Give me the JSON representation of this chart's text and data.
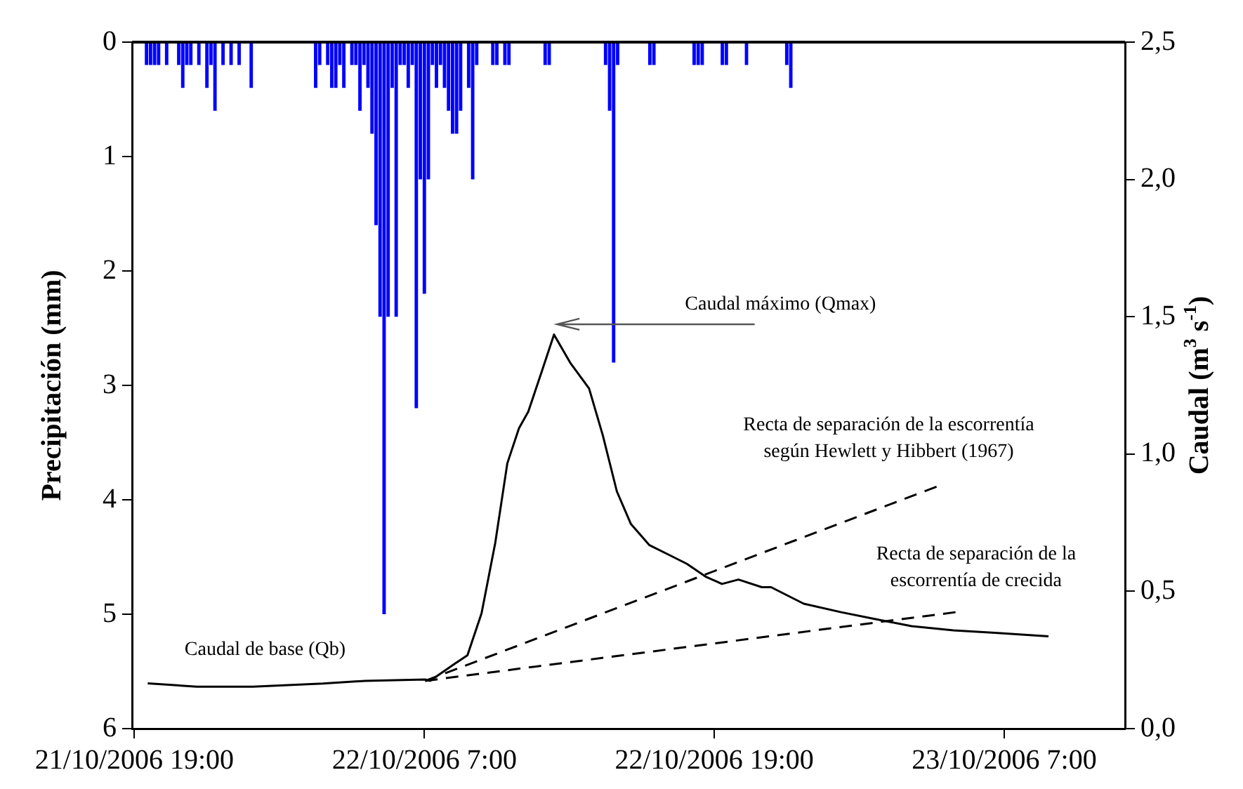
{
  "chart_data": {
    "type": "bar",
    "ylabel": "Precipitación (mm)",
    "y2label": "Caudal (m$^{3}$ s$^{-1}$)",
    "xlim": [
      "2006-10-21T18:54",
      "2006-10-23T12:00"
    ],
    "xticks": [
      {
        "value": "2006-10-21T19:00",
        "label": "21/10/2006 19:00"
      },
      {
        "value": "2006-10-22T07:00",
        "label": "22/10/2006 7:00"
      },
      {
        "value": "2006-10-22T19:00",
        "label": "22/10/2006 19:00"
      },
      {
        "value": "2006-10-23T07:00",
        "label": "23/10/2006 7:00"
      }
    ],
    "ylim": [
      6,
      0
    ],
    "yticks": [
      0,
      1,
      2,
      3,
      4,
      5,
      6
    ],
    "y2lim": [
      0,
      2.5
    ],
    "y2ticks": [
      {
        "value": 0,
        "label": "0,0"
      },
      {
        "value": 0.5,
        "label": "0,5"
      },
      {
        "value": 1,
        "label": "1,0"
      },
      {
        "value": 1.5,
        "label": "1,5"
      },
      {
        "value": 2,
        "label": "2,0"
      },
      {
        "value": 2.5,
        "label": "2,5"
      }
    ],
    "series": [
      {
        "color": "#0000ff",
        "x": [
          "2006-10-21T19:30",
          "2006-10-21T19:40",
          "2006-10-21T19:50",
          "2006-10-21T20:00",
          "2006-10-21T20:20",
          "2006-10-21T20:50",
          "2006-10-21T21:00",
          "2006-10-21T21:10",
          "2006-10-21T21:20",
          "2006-10-21T21:40",
          "2006-10-21T22:00",
          "2006-10-21T22:10",
          "2006-10-21T22:20",
          "2006-10-21T22:40",
          "2006-10-21T23:00",
          "2006-10-21T23:20",
          "2006-10-21T23:50",
          "2006-10-22T02:30",
          "2006-10-22T02:40",
          "2006-10-22T03:00",
          "2006-10-22T03:10",
          "2006-10-22T03:20",
          "2006-10-22T03:30",
          "2006-10-22T03:40",
          "2006-10-22T04:00",
          "2006-10-22T04:10",
          "2006-10-22T04:20",
          "2006-10-22T04:30",
          "2006-10-22T04:40",
          "2006-10-22T04:50",
          "2006-10-22T05:00",
          "2006-10-22T05:10",
          "2006-10-22T05:20",
          "2006-10-22T05:30",
          "2006-10-22T05:40",
          "2006-10-22T05:50",
          "2006-10-22T06:00",
          "2006-10-22T06:10",
          "2006-10-22T06:20",
          "2006-10-22T06:30",
          "2006-10-22T06:40",
          "2006-10-22T06:50",
          "2006-10-22T07:00",
          "2006-10-22T07:10",
          "2006-10-22T07:20",
          "2006-10-22T07:30",
          "2006-10-22T07:40",
          "2006-10-22T07:50",
          "2006-10-22T08:00",
          "2006-10-22T08:10",
          "2006-10-22T08:20",
          "2006-10-22T08:30",
          "2006-10-22T08:50",
          "2006-10-22T09:00",
          "2006-10-22T09:10",
          "2006-10-22T09:50",
          "2006-10-22T10:00",
          "2006-10-22T10:20",
          "2006-10-22T10:30",
          "2006-10-22T12:00",
          "2006-10-22T12:10",
          "2006-10-22T14:30",
          "2006-10-22T14:40",
          "2006-10-22T14:50",
          "2006-10-22T15:00",
          "2006-10-22T16:20",
          "2006-10-22T16:30",
          "2006-10-22T18:10",
          "2006-10-22T18:20",
          "2006-10-22T18:30",
          "2006-10-22T19:20",
          "2006-10-22T19:30",
          "2006-10-22T20:20",
          "2006-10-22T22:00",
          "2006-10-22T22:10"
        ],
        "values": [
          0.2,
          0.2,
          0.2,
          0.2,
          0.2,
          0.2,
          0.4,
          0.2,
          0.2,
          0.2,
          0.4,
          0.2,
          0.6,
          0.2,
          0.2,
          0.2,
          0.4,
          0.4,
          0.2,
          0.2,
          0.4,
          0.4,
          0.2,
          0.4,
          0.2,
          0.2,
          0.6,
          0.2,
          0.4,
          0.8,
          1.6,
          2.4,
          5.0,
          2.4,
          0.4,
          2.4,
          0.2,
          0.2,
          0.4,
          0.2,
          3.2,
          1.2,
          2.2,
          1.2,
          0.2,
          0.4,
          0.2,
          0.4,
          0.6,
          0.8,
          0.8,
          0.6,
          0.4,
          1.2,
          0.2,
          0.2,
          0.2,
          0.2,
          0.2,
          0.2,
          0.2,
          0.2,
          0.6,
          2.8,
          0.2,
          0.2,
          0.2,
          0.2,
          0.2,
          0.2,
          0.2,
          0.2,
          0.2,
          0.2,
          0.4
        ]
      },
      {
        "type": "line",
        "axis": "y2",
        "color": "#000000",
        "x": [
          "2006-10-21T19:33",
          "2006-10-21T21:35",
          "2006-10-21T23:54",
          "2006-10-22T02:48",
          "2006-10-22T04:32",
          "2006-10-22T07:02",
          "2006-10-22T07:14",
          "2006-10-22T08:13",
          "2006-10-22T08:47",
          "2006-10-22T09:22",
          "2006-10-22T09:56",
          "2006-10-22T10:26",
          "2006-10-22T10:55",
          "2006-10-22T11:18",
          "2006-10-22T11:53",
          "2006-10-22T12:22",
          "2006-10-22T13:02",
          "2006-10-22T13:49",
          "2006-10-22T14:23",
          "2006-10-22T14:58",
          "2006-10-22T15:33",
          "2006-10-22T16:19",
          "2006-10-22T17:06",
          "2006-10-22T17:52",
          "2006-10-22T18:38",
          "2006-10-22T19:19",
          "2006-10-22T20:00",
          "2006-10-22T20:58",
          "2006-10-22T21:21",
          "2006-10-22T22:42",
          "2006-10-23T00:15",
          "2006-10-23T01:36",
          "2006-10-23T03:10",
          "2006-10-23T04:54",
          "2006-10-23T06:37",
          "2006-10-23T08:50"
        ],
        "values": [
          0.165,
          0.153,
          0.153,
          0.164,
          0.174,
          0.179,
          0.174,
          0.234,
          0.267,
          0.42,
          0.676,
          0.966,
          1.094,
          1.154,
          1.307,
          1.435,
          1.333,
          1.239,
          1.069,
          0.864,
          0.745,
          0.668,
          0.634,
          0.6,
          0.554,
          0.527,
          0.543,
          0.515,
          0.515,
          0.455,
          0.424,
          0.4,
          0.373,
          0.358,
          0.349,
          0.336
        ]
      },
      {
        "type": "line",
        "axis": "y2",
        "color": "#000000",
        "line_style": "dashed",
        "x": [
          "2006-10-22T07:02",
          "2006-10-23T04:12"
        ],
        "values": [
          0.174,
          0.881
        ]
      },
      {
        "type": "line",
        "axis": "y2",
        "color": "#000000",
        "line_style": "dashed",
        "x": [
          "2006-10-22T07:02",
          "2006-10-23T04:59"
        ],
        "values": [
          0.174,
          0.424
        ]
      }
    ],
    "annotations": [
      "Caudal máximo (Qmax)",
      "Recta de separación de la escorrentía\nsegún Hewlett y Hibbert (1967)",
      "Recta de separación de la\nescorrentía de crecida",
      "Caudal de base (Qb)"
    ]
  }
}
